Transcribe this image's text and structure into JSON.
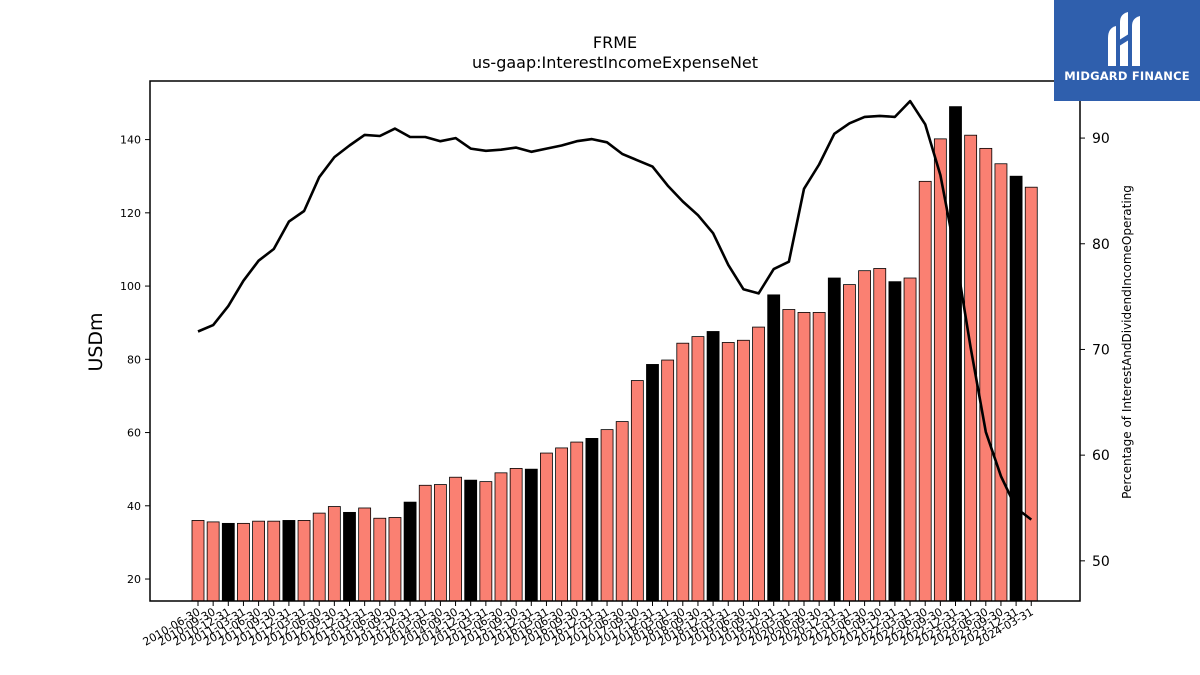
{
  "chart_data": {
    "type": "bar",
    "title": "FRME",
    "subtitle": "us-gaap:InterestIncomeExpenseNet",
    "ylabel": "USDm",
    "y2label": "Percentage of InterestAndDividendIncomeOperating",
    "ylim": [
      14,
      156
    ],
    "y2lim": [
      46.2,
      95.4
    ],
    "yticks": [
      20,
      40,
      60,
      80,
      100,
      120,
      140
    ],
    "y2ticks": [
      50,
      60,
      70,
      80,
      90
    ],
    "categories": [
      "2010-06-30",
      "2010-09-30",
      "2010-12-31",
      "2011-03-31",
      "2011-06-30",
      "2011-09-30",
      "2011-12-31",
      "2012-03-31",
      "2012-06-30",
      "2012-09-30",
      "2012-12-31",
      "2013-03-31",
      "2013-06-30",
      "2013-09-30",
      "2013-12-31",
      "2014-03-31",
      "2014-06-30",
      "2014-09-30",
      "2014-12-31",
      "2015-03-31",
      "2015-06-30",
      "2015-09-30",
      "2015-12-31",
      "2016-03-31",
      "2016-06-30",
      "2016-09-30",
      "2016-12-31",
      "2017-03-31",
      "2017-06-30",
      "2017-09-30",
      "2017-12-31",
      "2018-03-31",
      "2018-06-30",
      "2018-09-30",
      "2018-12-31",
      "2019-03-31",
      "2019-06-30",
      "2019-09-30",
      "2019-12-31",
      "2020-03-31",
      "2020-06-30",
      "2020-09-30",
      "2020-12-31",
      "2021-03-31",
      "2021-06-30",
      "2021-09-30",
      "2021-12-31",
      "2022-03-31",
      "2022-06-30",
      "2022-09-30",
      "2022-12-31",
      "2023-03-31",
      "2023-06-30",
      "2023-09-30",
      "2023-12-31",
      "2024-03-31"
    ],
    "series": [
      {
        "type": "bar",
        "values": [
          36.0,
          35.6,
          35.2,
          35.2,
          35.8,
          35.8,
          36.0,
          36.0,
          38.0,
          39.8,
          38.2,
          39.4,
          36.6,
          36.8,
          41.0,
          45.6,
          45.8,
          47.8,
          47.0,
          46.6,
          49.0,
          50.2,
          50.0,
          54.4,
          55.8,
          57.4,
          58.4,
          60.8,
          63.0,
          74.2,
          78.6,
          79.8,
          84.4,
          86.2,
          87.6,
          84.6,
          85.2,
          88.8,
          97.6,
          93.6,
          92.8,
          92.8,
          102.2,
          100.4,
          104.2,
          104.8,
          101.2,
          102.2,
          128.6,
          140.2,
          149.0,
          141.2,
          137.6,
          133.4,
          130.0,
          127.0
        ],
        "highlight": [
          2,
          6,
          10,
          14,
          18,
          22,
          26,
          30,
          34,
          38,
          42,
          46,
          50,
          54
        ],
        "color": "#fa8072",
        "highlight_color": "#000000"
      },
      {
        "type": "line",
        "axis": "right",
        "values": [
          71.7,
          72.3,
          74.1,
          76.5,
          78.4,
          79.5,
          82.1,
          83.1,
          86.3,
          88.2,
          89.3,
          90.3,
          90.2,
          90.9,
          90.1,
          90.1,
          89.7,
          90.0,
          89.0,
          88.8,
          88.9,
          89.1,
          88.7,
          89.0,
          89.3,
          89.7,
          89.9,
          89.6,
          88.5,
          87.9,
          87.3,
          85.5,
          84.0,
          82.7,
          81.0,
          78.0,
          75.7,
          75.3,
          77.6,
          78.3,
          85.2,
          87.5,
          90.4,
          91.4,
          92.0,
          92.1,
          92.0,
          93.5,
          91.3,
          86.5,
          79.0,
          70.2,
          62.2,
          58.0,
          55.0,
          53.9
        ],
        "color": "#000000"
      }
    ]
  }
}
